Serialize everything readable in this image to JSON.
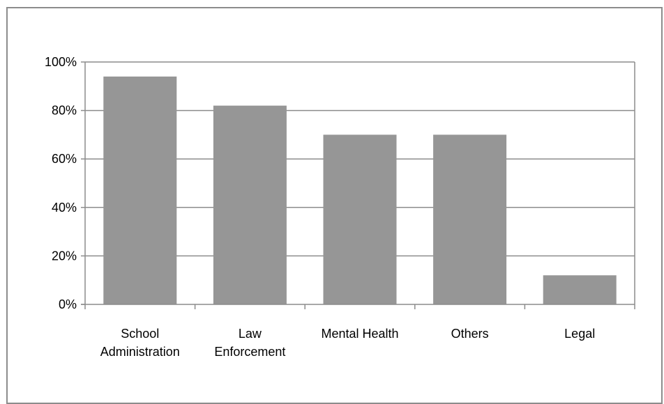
{
  "chart_data": {
    "type": "bar",
    "categories": [
      [
        "School",
        "Administration"
      ],
      [
        "Law",
        "Enforcement"
      ],
      [
        "Mental Health"
      ],
      [
        "Others"
      ],
      [
        "Legal"
      ]
    ],
    "values": [
      94,
      82,
      70,
      70,
      12
    ],
    "yticks": [
      "0%",
      "20%",
      "40%",
      "60%",
      "80%",
      "100%"
    ],
    "ylim": [
      0,
      100
    ],
    "grid": true,
    "legend": "none",
    "bar_color": "#969696",
    "grid_color": "#8c8c8c",
    "axis_color": "#8c8c8c"
  }
}
